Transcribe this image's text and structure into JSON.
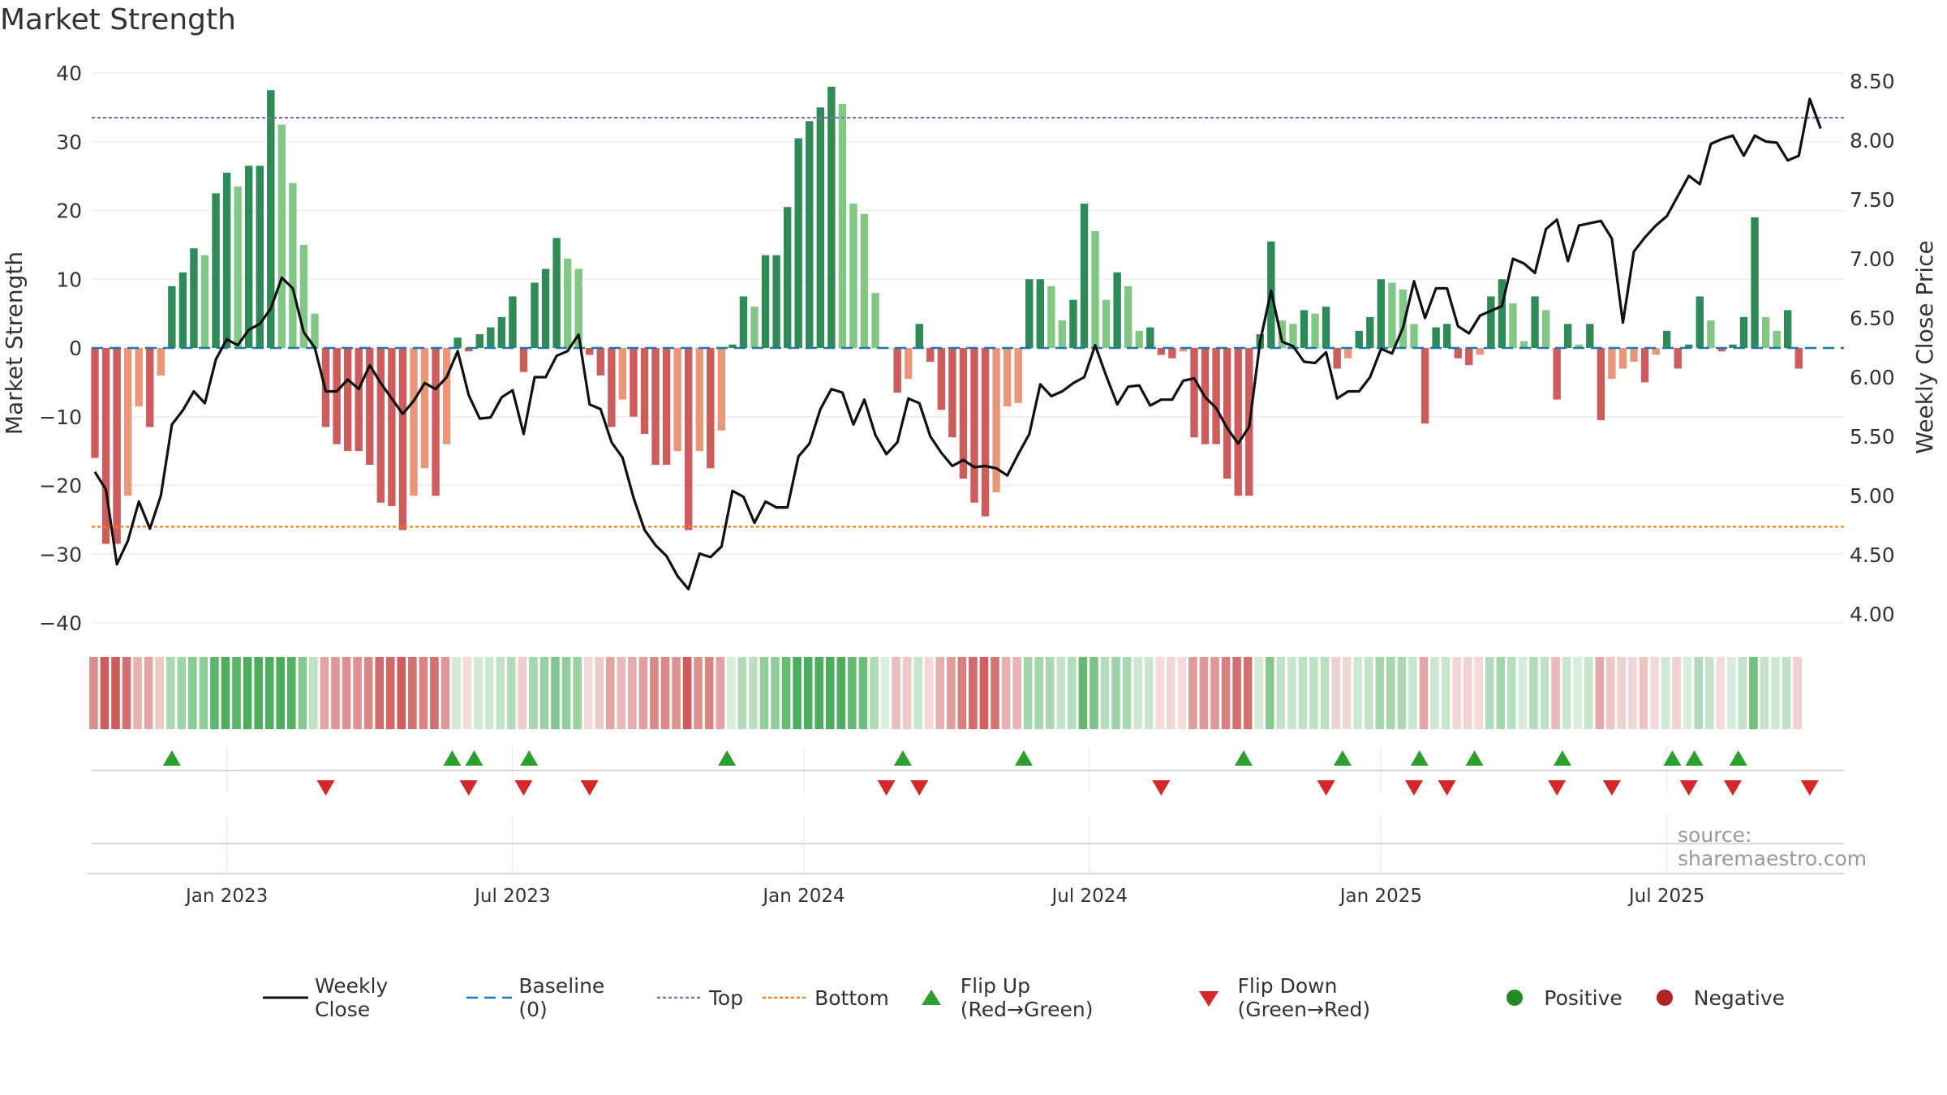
{
  "title": "Market Strength",
  "watermark": "source: sharemaestro.com",
  "colors": {
    "strong_green": "#2e8b57",
    "light_green": "#82c785",
    "strong_red": "#cd5c5c",
    "light_red": "#e9967a",
    "close_line": "#111111",
    "baseline": "#1f77b4",
    "top": "#9467bd",
    "bottom": "#ff7f0e",
    "flip_up": "#2ca02c",
    "flip_down": "#d62728",
    "positive": "#228b22",
    "negative": "#b22222",
    "grid": "#e9e9e9"
  },
  "legend": [
    {
      "key": "close",
      "label": "Weekly Close"
    },
    {
      "key": "baseline",
      "label": "Baseline (0)"
    },
    {
      "key": "top",
      "label": "Top"
    },
    {
      "key": "bottom",
      "label": "Bottom"
    },
    {
      "key": "flip_up",
      "label": "Flip Up (Red→Green)"
    },
    {
      "key": "flip_down",
      "label": "Flip Down (Green→Red)"
    },
    {
      "key": "positive",
      "label": "Positive"
    },
    {
      "key": "negative",
      "label": "Negative"
    }
  ],
  "chart_data": {
    "type": "bar",
    "title": "Market Strength",
    "ylabel": "Market Strength",
    "y2label": "Weekly Close Price",
    "ylim": [
      -40,
      40
    ],
    "y_ticks": [
      40,
      30,
      20,
      10,
      0,
      -10,
      -20,
      -30,
      -40
    ],
    "y_tick_labels": [
      "40",
      "30",
      "20",
      "10",
      "0",
      "−10",
      "−20",
      "−30",
      "−40"
    ],
    "y2lim": [
      3.9,
      8.6
    ],
    "y2_ticks": [
      8.5,
      8.0,
      7.5,
      7.0,
      6.5,
      6.0,
      5.5,
      5.0,
      4.5,
      4.0
    ],
    "y2_tick_labels": [
      "8.50",
      "8.00",
      "7.50",
      "7.00",
      "6.50",
      "6.00",
      "5.50",
      "5.00",
      "4.50",
      "4.00"
    ],
    "top_level": 33.5,
    "bottom_level": -26,
    "start_date": "2022-10-10",
    "week_interval_days": 7,
    "x_ticks": [
      {
        "label": "Jan 2023",
        "week": 12
      },
      {
        "label": "Jul 2023",
        "week": 38
      },
      {
        "label": "Jan 2024",
        "week": 64.5
      },
      {
        "label": "Jul 2024",
        "week": 90.5
      },
      {
        "label": "Jan 2025",
        "week": 117
      },
      {
        "label": "Jul 2025",
        "week": 143
      }
    ],
    "strength": [
      -16,
      -28.5,
      -28.5,
      -21.5,
      -8.5,
      -11.5,
      -4,
      9,
      11,
      14.5,
      13.5,
      22.5,
      25.5,
      23.5,
      26.5,
      26.5,
      37.5,
      32.5,
      24,
      15,
      5,
      -11.5,
      -14,
      -15,
      -15,
      -17,
      -22.5,
      -23,
      -26.5,
      -21.5,
      -17.5,
      -21.5,
      -14,
      1.5,
      -0.5,
      2,
      3,
      4.5,
      7.5,
      -3.5,
      9.5,
      11.5,
      16,
      13,
      11.5,
      -1,
      -4,
      -11.5,
      -7.5,
      -10,
      -12.5,
      -17,
      -17,
      -15,
      -26.5,
      -15,
      -17.5,
      -12,
      0.5,
      7.5,
      6,
      13.5,
      13.5,
      20.5,
      30.5,
      33,
      35,
      38,
      35.5,
      21,
      19.5,
      8,
      0,
      -6.5,
      -4.5,
      3.5,
      -2,
      -9,
      -13,
      -19,
      -22.5,
      -24.5,
      -21,
      -8.5,
      -8,
      10,
      10,
      9,
      4,
      7,
      21,
      17,
      7,
      11,
      9,
      2.5,
      3,
      -1,
      -1.5,
      -0.5,
      -13,
      -14,
      -14,
      -19,
      -21.5,
      -21.5,
      2,
      15.5,
      4,
      3.5,
      5.5,
      5,
      6,
      -3,
      -1.5,
      2.5,
      4.5,
      10,
      9.5,
      8.5,
      3.5,
      -11,
      3,
      3.5,
      -1.5,
      -2.5,
      -1,
      7.5,
      10,
      6.5,
      1,
      7.5,
      5.5,
      -7.5,
      3.5,
      0.5,
      3.5,
      -10.5,
      -4.5,
      -3,
      -2,
      -5,
      -1,
      2.5,
      -3,
      0.5,
      7.5,
      4,
      -0.5,
      0.5,
      4.5,
      19,
      4.5,
      2.5,
      5.5,
      -3
    ],
    "close": [
      5.2,
      5.05,
      4.42,
      4.62,
      4.95,
      4.72,
      5.0,
      5.6,
      5.72,
      5.88,
      5.78,
      6.15,
      6.32,
      6.27,
      6.4,
      6.45,
      6.58,
      6.84,
      6.75,
      6.38,
      6.25,
      5.88,
      5.88,
      5.98,
      5.9,
      6.1,
      5.95,
      5.82,
      5.69,
      5.8,
      5.95,
      5.9,
      6.0,
      6.22,
      5.85,
      5.65,
      5.66,
      5.83,
      5.89,
      5.52,
      6.0,
      6.0,
      6.18,
      6.22,
      6.36,
      5.77,
      5.73,
      5.45,
      5.32,
      4.98,
      4.71,
      4.58,
      4.49,
      4.32,
      4.21,
      4.51,
      4.48,
      4.57,
      5.04,
      4.99,
      4.77,
      4.95,
      4.9,
      4.9,
      5.33,
      5.44,
      5.73,
      5.9,
      5.87,
      5.6,
      5.81,
      5.51,
      5.35,
      5.45,
      5.82,
      5.78,
      5.5,
      5.36,
      5.25,
      5.3,
      5.24,
      5.25,
      5.23,
      5.17,
      5.35,
      5.52,
      5.94,
      5.84,
      5.88,
      5.95,
      6.0,
      6.27,
      6.01,
      5.77,
      5.92,
      5.93,
      5.76,
      5.81,
      5.81,
      5.97,
      5.99,
      5.83,
      5.74,
      5.57,
      5.44,
      5.58,
      6.3,
      6.73,
      6.3,
      6.26,
      6.13,
      6.12,
      6.21,
      5.82,
      5.88,
      5.88,
      6.0,
      6.24,
      6.2,
      6.42,
      6.81,
      6.5,
      6.75,
      6.75,
      6.43,
      6.37,
      6.52,
      6.56,
      6.6,
      7.0,
      6.96,
      6.88,
      7.25,
      7.33,
      6.98,
      7.28,
      7.3,
      7.32,
      7.17,
      6.46,
      7.06,
      7.18,
      7.28,
      7.36,
      7.53,
      7.7,
      7.63,
      7.97,
      8.01,
      8.04,
      7.87,
      8.04,
      7.99,
      7.98,
      7.83,
      7.87,
      8.35,
      8.1
    ],
    "flip_up_weeks": [
      7,
      32.5,
      34.5,
      39.5,
      57.5,
      73.5,
      84.5,
      104.5,
      113.5,
      120.5,
      125.5,
      133.5,
      143.5,
      145.5,
      149.5
    ],
    "flip_down_weeks": [
      21,
      34,
      39,
      45,
      72,
      75,
      97,
      112,
      120,
      123,
      133,
      138,
      145,
      149,
      156
    ]
  }
}
